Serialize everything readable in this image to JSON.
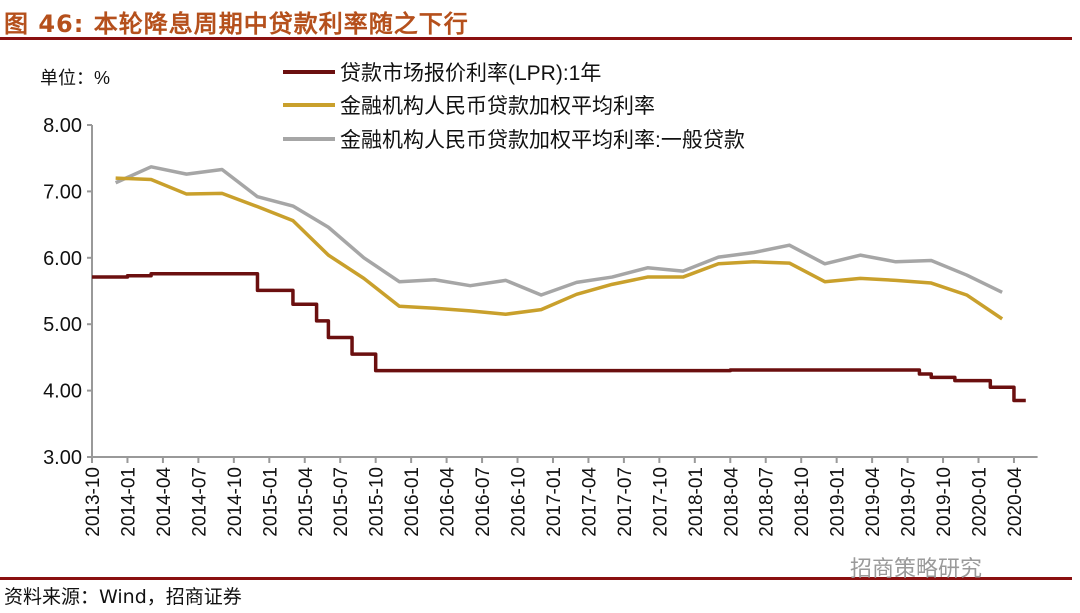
{
  "header": {
    "title": "图 46:  本轮降息周期中贷款利率随之下行"
  },
  "footer": {
    "source": "资料来源：Wind，招商证券",
    "watermark": "招商策略研究"
  },
  "chart_data": {
    "type": "line",
    "unit_label": "单位：%",
    "ylim": [
      3,
      8
    ],
    "yticks": [
      "3.00",
      "4.00",
      "5.00",
      "6.00",
      "7.00",
      "8.00"
    ],
    "xrange": [
      "2013-10",
      "2020-06"
    ],
    "xticks": [
      "2013-10",
      "2014-01",
      "2014-04",
      "2014-07",
      "2014-10",
      "2015-01",
      "2015-04",
      "2015-07",
      "2015-10",
      "2016-01",
      "2016-04",
      "2016-07",
      "2016-10",
      "2017-01",
      "2017-04",
      "2017-07",
      "2017-10",
      "2018-01",
      "2018-04",
      "2018-07",
      "2018-10",
      "2019-01",
      "2019-04",
      "2019-07",
      "2019-10",
      "2020-01",
      "2020-04"
    ],
    "legend_position": "top",
    "grid": false,
    "series": [
      {
        "name": "贷款市场报价利率(LPR):1年",
        "color": "#6b0f0f",
        "step": true,
        "x": [
          "2013-10",
          "2014-01",
          "2014-03",
          "2014-12",
          "2015-03",
          "2015-05",
          "2015-06",
          "2015-08",
          "2015-10",
          "2018-04",
          "2019-08",
          "2019-09",
          "2019-11",
          "2020-02",
          "2020-04",
          "2020-05"
        ],
        "y": [
          5.71,
          5.73,
          5.76,
          5.51,
          5.3,
          5.05,
          4.8,
          4.55,
          4.3,
          4.31,
          4.25,
          4.2,
          4.15,
          4.05,
          3.85,
          3.85
        ]
      },
      {
        "name": "金融机构人民币贷款加权平均利率",
        "color": "#c9a02c",
        "step": false,
        "x": [
          "2013-12",
          "2014-03",
          "2014-06",
          "2014-09",
          "2014-12",
          "2015-03",
          "2015-06",
          "2015-09",
          "2015-12",
          "2016-03",
          "2016-06",
          "2016-09",
          "2016-12",
          "2017-03",
          "2017-06",
          "2017-09",
          "2017-12",
          "2018-03",
          "2018-06",
          "2018-09",
          "2018-12",
          "2019-03",
          "2019-06",
          "2019-09",
          "2019-12",
          "2020-03"
        ],
        "y": [
          7.2,
          7.18,
          6.96,
          6.97,
          6.77,
          6.56,
          6.04,
          5.69,
          5.27,
          5.24,
          5.2,
          5.15,
          5.22,
          5.45,
          5.6,
          5.71,
          5.71,
          5.91,
          5.94,
          5.92,
          5.64,
          5.69,
          5.66,
          5.62,
          5.44,
          5.08
        ]
      },
      {
        "name": "金融机构人民币贷款加权平均利率:一般贷款",
        "color": "#a6a6a6",
        "step": false,
        "x": [
          "2013-12",
          "2014-03",
          "2014-06",
          "2014-09",
          "2014-12",
          "2015-03",
          "2015-06",
          "2015-09",
          "2015-12",
          "2016-03",
          "2016-06",
          "2016-09",
          "2016-12",
          "2017-03",
          "2017-06",
          "2017-09",
          "2017-12",
          "2018-03",
          "2018-06",
          "2018-09",
          "2018-12",
          "2019-03",
          "2019-06",
          "2019-09",
          "2019-12",
          "2020-03"
        ],
        "y": [
          7.13,
          7.37,
          7.26,
          7.33,
          6.92,
          6.78,
          6.46,
          6.0,
          5.64,
          5.67,
          5.58,
          5.66,
          5.44,
          5.63,
          5.71,
          5.85,
          5.8,
          6.01,
          6.08,
          6.19,
          5.91,
          6.04,
          5.94,
          5.96,
          5.74,
          5.48
        ]
      }
    ]
  }
}
